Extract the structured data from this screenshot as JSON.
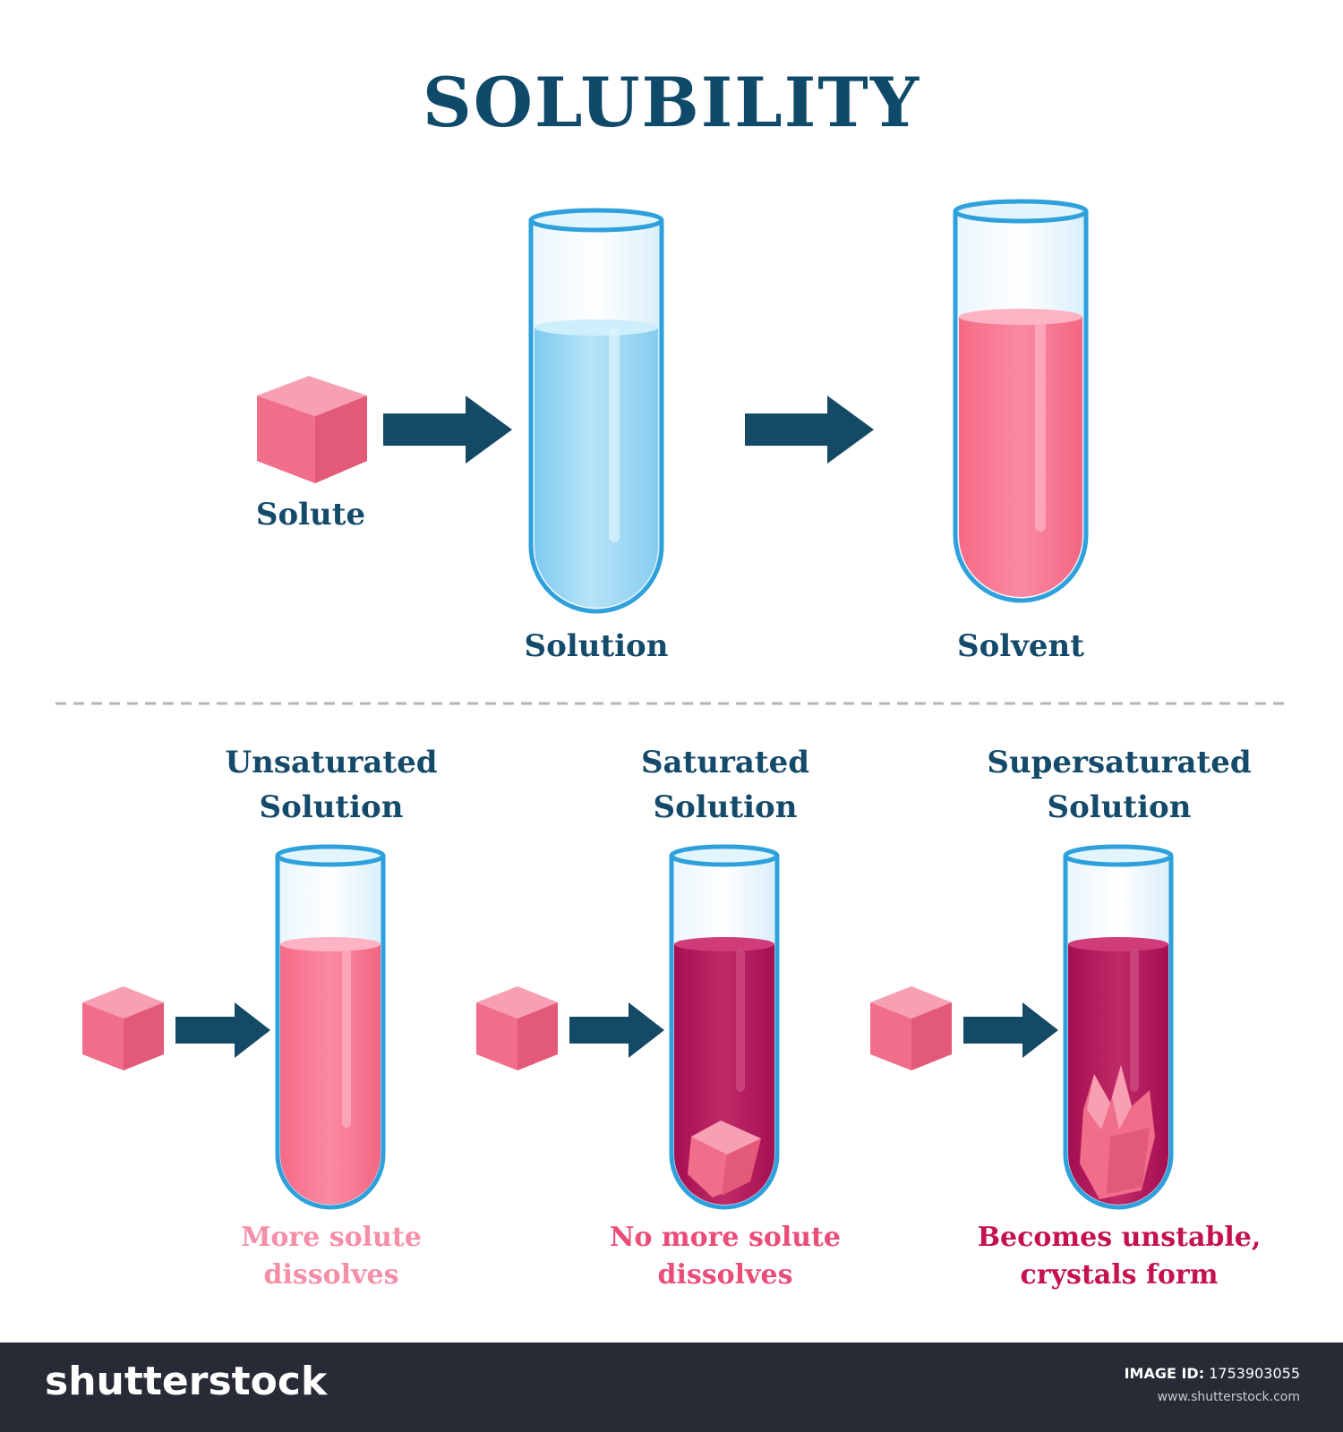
{
  "title": "SOLUBILITY",
  "top": {
    "solute_label": "Solute",
    "solution_label": "Solution",
    "solvent_label": "Solvent"
  },
  "bottom": {
    "unsaturated": {
      "title_line1": "Unsaturated",
      "title_line2": "Solution",
      "caption_line1": "More solute",
      "caption_line2": "dissolves"
    },
    "saturated": {
      "title_line1": "Saturated",
      "title_line2": "Solution",
      "caption_line1": "No more solute",
      "caption_line2": "dissolves"
    },
    "supersaturated": {
      "title_line1": "Supersaturated",
      "title_line2": "Solution",
      "caption_line1": "Becomes unstable,",
      "caption_line2": "crystals form"
    }
  },
  "watermark": {
    "brand": "shutterstock",
    "image_id_label": "IMAGE ID:",
    "image_id": "1753903055",
    "url": "www.shutterstock.com"
  },
  "colors": {
    "title": "#0f4a6b",
    "label": "#144a6a",
    "arrow": "#154a66",
    "tube_outline": "#2ea1dc",
    "liquid_blue": "#a9dcf5",
    "liquid_pink": "#f7778f",
    "liquid_dark": "#b5135a",
    "cube": "#f06e8a",
    "caption_unsaturated": "#f58fa7",
    "caption_saturated": "#ea4d78",
    "caption_supersaturated": "#c4124f",
    "footer": "#262b36"
  }
}
